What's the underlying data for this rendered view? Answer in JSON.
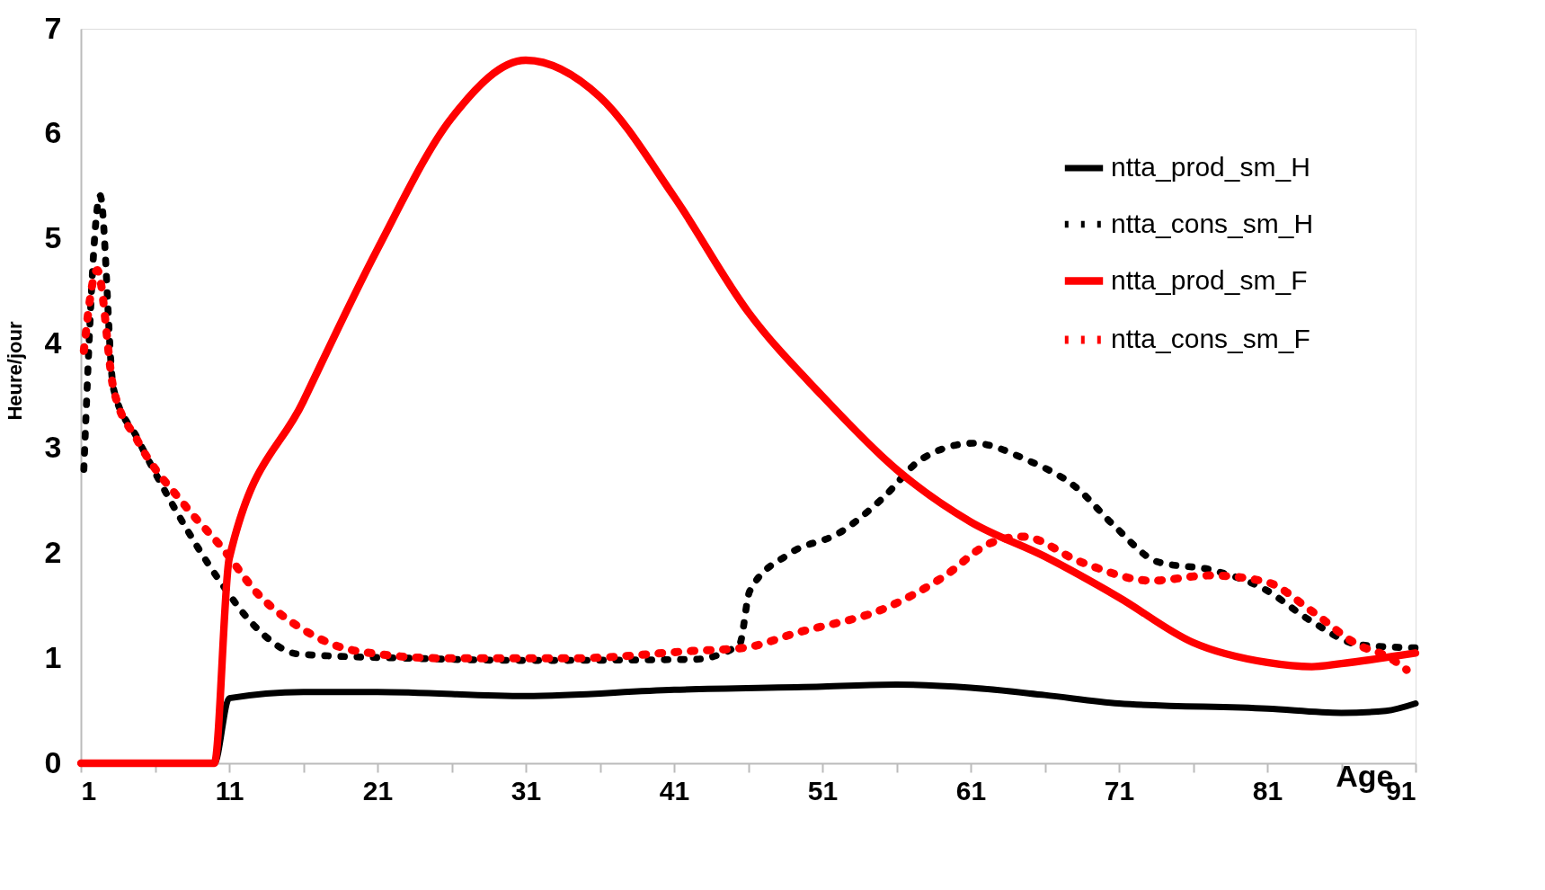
{
  "chart_data": {
    "type": "line",
    "xlabel": "Age",
    "ylabel": "Heure/jour",
    "xlim": [
      1,
      91
    ],
    "ylim": [
      0,
      7
    ],
    "xticks": [
      1,
      {
        "value": 6,
        "label": null
      },
      11,
      {
        "value": 16,
        "label": null
      },
      21,
      {
        "value": 26,
        "label": null
      },
      31,
      {
        "value": 36,
        "label": null
      },
      41,
      {
        "value": 46,
        "label": null
      },
      51,
      {
        "value": 56,
        "label": null
      },
      61,
      {
        "value": 66,
        "label": null
      },
      71,
      {
        "value": 76,
        "label": null
      },
      81,
      {
        "value": 86,
        "label": null
      },
      91
    ],
    "yticks": [
      0,
      1,
      2,
      3,
      4,
      5,
      6,
      7
    ],
    "grid": false,
    "legend": "top right",
    "series": [
      {
        "name": "ntta_prod_sm_H",
        "color": "#000000",
        "line_style": "solid",
        "x": [
          1,
          10,
          11,
          16,
          21,
          31,
          41,
          51,
          56,
          61,
          66,
          71,
          81,
          86,
          89,
          91
        ],
        "values": [
          0,
          0,
          0.62,
          0.68,
          0.68,
          0.64,
          0.7,
          0.73,
          0.75,
          0.72,
          0.65,
          0.57,
          0.52,
          0.48,
          0.5,
          0.57
        ]
      },
      {
        "name": "ntta_cons_sm_H",
        "color": "#000000",
        "line_style": "dotted",
        "x": [
          1.2,
          2.3,
          3.2,
          4.8,
          7.4,
          10.4,
          12.7,
          15.7,
          23.4,
          31.0,
          42.3,
          45.4,
          46.1,
          48.7,
          52.2,
          55.1,
          57.7,
          61.2,
          64.8,
          68.1,
          70.7,
          73.6,
          77.3,
          80.8,
          83.9,
          87.2,
          91
        ],
        "values": [
          2.8,
          5.41,
          3.57,
          3.1,
          2.41,
          1.73,
          1.31,
          1.04,
          1.0,
          0.98,
          0.99,
          1.13,
          1.64,
          1.99,
          2.2,
          2.53,
          2.9,
          3.05,
          2.89,
          2.63,
          2.26,
          1.92,
          1.84,
          1.66,
          1.36,
          1.13,
          1.1
        ]
      },
      {
        "name": "ntta_prod_sm_F",
        "color": "#ff0000",
        "line_style": "solid",
        "x": [
          1,
          10,
          11,
          16,
          21,
          26,
          31,
          36,
          41,
          46,
          51,
          56,
          61,
          66,
          71,
          76,
          81,
          84,
          86,
          91
        ],
        "values": [
          0,
          0,
          1.95,
          3.45,
          4.9,
          6.15,
          6.7,
          6.35,
          5.4,
          4.3,
          3.5,
          2.8,
          2.3,
          1.97,
          1.58,
          1.15,
          0.96,
          0.92,
          0.95,
          1.05
        ]
      },
      {
        "name": "ntta_cons_sm_F",
        "color": "#ff0000",
        "line_style": "dotted",
        "x": [
          1.2,
          2.1,
          3.2,
          4.8,
          8.0,
          10.6,
          12.9,
          15.7,
          19.6,
          25.6,
          34.1,
          42.2,
          45.7,
          49.2,
          55.6,
          59.2,
          62.2,
          64.5,
          68.4,
          73.2,
          77.1,
          80.9,
          84.0,
          87.1,
          89.2,
          90.4
        ],
        "values": [
          3.93,
          4.7,
          3.57,
          3.08,
          2.46,
          2.04,
          1.62,
          1.3,
          1.07,
          1.0,
          1.0,
          1.07,
          1.1,
          1.24,
          1.5,
          1.78,
          2.09,
          2.16,
          1.92,
          1.74,
          1.79,
          1.73,
          1.45,
          1.13,
          1.01,
          0.89
        ]
      }
    ]
  }
}
